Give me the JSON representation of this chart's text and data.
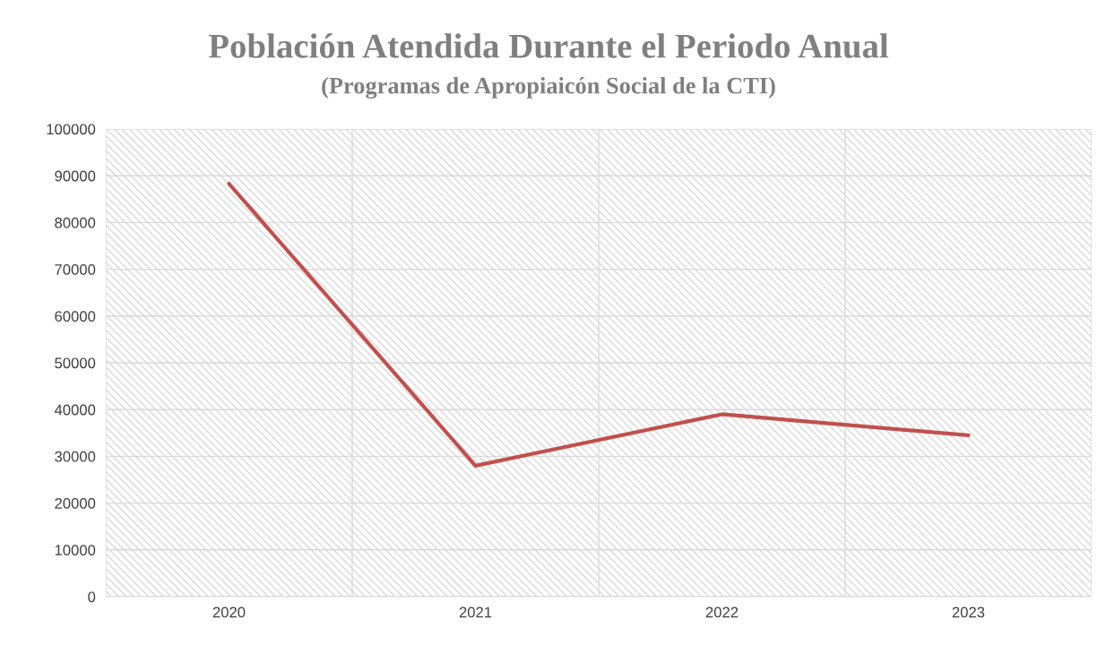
{
  "chart_data": {
    "type": "line",
    "title": "Población Atendida Durante el Periodo Anual",
    "subtitle": "(Programas de Apropiaicón Social de la CTI)",
    "categories": [
      "2020",
      "2021",
      "2022",
      "2023"
    ],
    "series": [
      {
        "color": "#c0504d",
        "values": [
          88300,
          28000,
          39000,
          34500
        ]
      }
    ],
    "ylim": [
      0,
      100000
    ],
    "yticks": [
      0,
      10000,
      20000,
      30000,
      40000,
      50000,
      60000,
      70000,
      80000,
      90000,
      100000
    ],
    "grid": true,
    "marker": "none",
    "line_style": "solid"
  }
}
